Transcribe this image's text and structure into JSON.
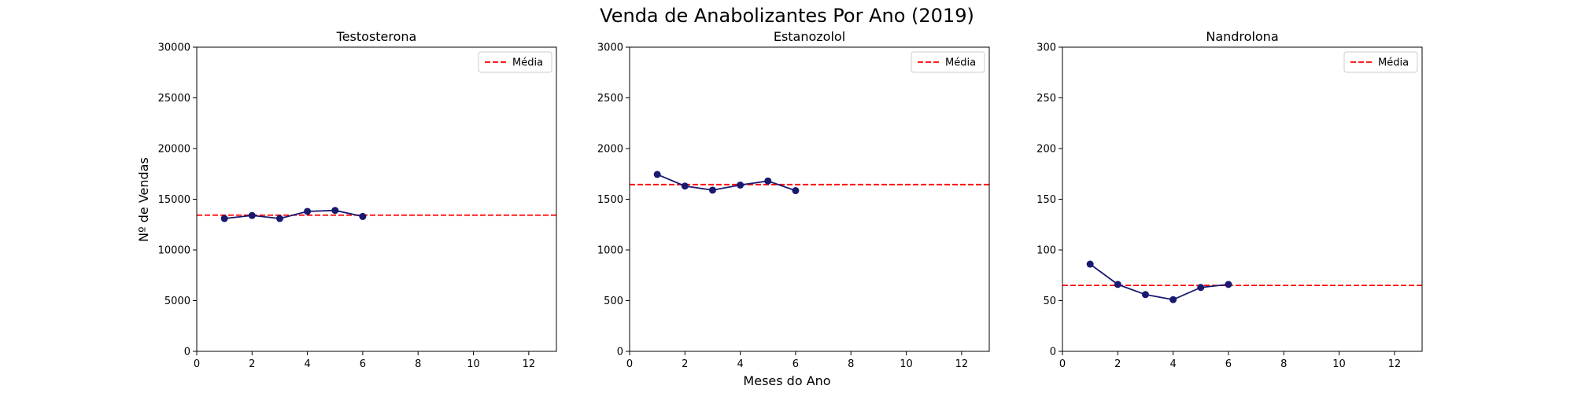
{
  "figure": {
    "title": "Venda de Anabolizantes Por Ano (2019)",
    "xlabel": "Meses do Ano",
    "ylabel": "Nº de Vendas"
  },
  "colors": {
    "series_line": "#191970",
    "mean_line": "#ff0000",
    "axes": "#000000",
    "legend_border": "#cccccc"
  },
  "chart_data": [
    {
      "type": "line",
      "title": "Testosterona",
      "x": [
        1,
        2,
        3,
        4,
        5,
        6
      ],
      "values": [
        13100,
        13400,
        13100,
        13800,
        13900,
        13300
      ],
      "mean": 13433,
      "mean_label": "Média",
      "xlim": [
        0,
        13
      ],
      "ylim": [
        0,
        30000
      ],
      "xticks": [
        0,
        2,
        4,
        6,
        8,
        10,
        12
      ],
      "yticks": [
        0,
        5000,
        10000,
        15000,
        20000,
        25000,
        30000
      ],
      "legend_position": "top-right",
      "grid": false
    },
    {
      "type": "line",
      "title": "Estanozolol",
      "x": [
        1,
        2,
        3,
        4,
        5,
        6
      ],
      "values": [
        1745,
        1630,
        1590,
        1640,
        1680,
        1585
      ],
      "mean": 1645,
      "mean_label": "Média",
      "xlim": [
        0,
        13
      ],
      "ylim": [
        0,
        3000
      ],
      "xticks": [
        0,
        2,
        4,
        6,
        8,
        10,
        12
      ],
      "yticks": [
        0,
        500,
        1000,
        1500,
        2000,
        2500,
        3000
      ],
      "legend_position": "top-right",
      "grid": false
    },
    {
      "type": "line",
      "title": "Nandrolona",
      "x": [
        1,
        2,
        3,
        4,
        5,
        6
      ],
      "values": [
        86,
        66,
        56,
        51,
        63,
        66
      ],
      "mean": 65,
      "mean_label": "Média",
      "xlim": [
        0,
        13
      ],
      "ylim": [
        0,
        300
      ],
      "xticks": [
        0,
        2,
        4,
        6,
        8,
        10,
        12
      ],
      "yticks": [
        0,
        50,
        100,
        150,
        200,
        250,
        300
      ],
      "legend_position": "top-right",
      "grid": false
    }
  ]
}
